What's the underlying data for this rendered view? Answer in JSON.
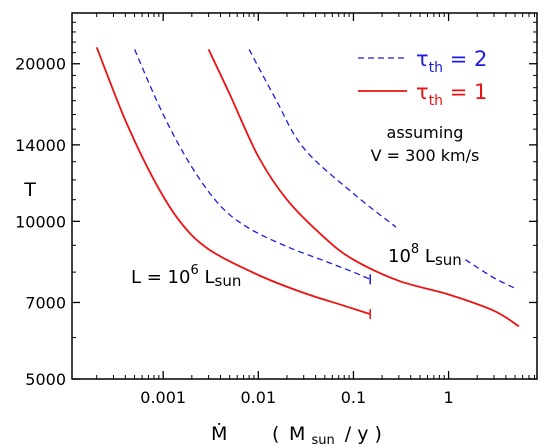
{
  "chart_data": {
    "type": "line",
    "x_scale": "log",
    "y_scale": "log",
    "xlim": [
      0.00011,
      8.5
    ],
    "ylim": [
      5000,
      25000
    ],
    "x_ticks": [
      {
        "value": 0.001,
        "label": "0.001"
      },
      {
        "value": 0.01,
        "label": "0.01"
      },
      {
        "value": 0.1,
        "label": "0.1"
      },
      {
        "value": 1,
        "label": "1"
      }
    ],
    "y_ticks": [
      {
        "value": 5000,
        "label": "5000"
      },
      {
        "value": 7000,
        "label": "7000"
      },
      {
        "value": 10000,
        "label": "10000"
      },
      {
        "value": 14000,
        "label": "14000"
      },
      {
        "value": 20000,
        "label": "20000"
      }
    ],
    "xlabel": {
      "mdot": "Ṁ",
      "open": "(",
      "m": "M",
      "sub": "sun",
      "rest": "/ y )"
    },
    "ylabel": "T",
    "legend": [
      {
        "symbol": "τ",
        "sub": "th",
        "rest": " = 2",
        "color": "#1c1ce0",
        "dash": true
      },
      {
        "symbol": "τ",
        "sub": "th",
        "rest": " = 1",
        "color": "#ee1111",
        "dash": false
      }
    ],
    "annotations": {
      "assuming_line1": "assuming",
      "assuming_line2": "V = 300 km/s",
      "label_L6": {
        "pre": "L = 10",
        "sup": "6",
        "mid": " L",
        "sub": "sun"
      },
      "label_L8": {
        "pre": "10",
        "sup": "8",
        "mid": " L",
        "sub": "sun"
      }
    },
    "series": [
      {
        "key": "tau1_L6",
        "color": "#ee1111",
        "dash": false,
        "end_tick": true,
        "points": [
          [
            0.0002,
            21500
          ],
          [
            0.0004,
            15600
          ],
          [
            0.0008,
            12000
          ],
          [
            0.0015,
            10000
          ],
          [
            0.003,
            8850
          ],
          [
            0.01,
            7900
          ],
          [
            0.03,
            7300
          ],
          [
            0.08,
            6900
          ],
          [
            0.15,
            6650
          ]
        ]
      },
      {
        "key": "tau2_L6",
        "color": "#1c1ce0",
        "dash": true,
        "end_tick": true,
        "points": [
          [
            0.0005,
            21300
          ],
          [
            0.001,
            16000
          ],
          [
            0.002,
            12700
          ],
          [
            0.004,
            10700
          ],
          [
            0.008,
            9700
          ],
          [
            0.02,
            8950
          ],
          [
            0.05,
            8400
          ],
          [
            0.1,
            8000
          ],
          [
            0.15,
            7750
          ]
        ]
      },
      {
        "key": "tau1_L8",
        "color": "#ee1111",
        "dash": false,
        "end_tick": false,
        "points": [
          [
            0.003,
            21300
          ],
          [
            0.005,
            17500
          ],
          [
            0.01,
            13300
          ],
          [
            0.02,
            11000
          ],
          [
            0.05,
            9300
          ],
          [
            0.1,
            8450
          ],
          [
            0.3,
            7700
          ],
          [
            1.0,
            7250
          ],
          [
            3.0,
            6750
          ],
          [
            5.5,
            6300
          ]
        ]
      },
      {
        "key": "tau2_L8",
        "color": "#1c1ce0",
        "dash": true,
        "end_tick": false,
        "points": [
          [
            0.008,
            21300
          ],
          [
            0.015,
            17200
          ],
          [
            0.03,
            13800
          ],
          [
            0.1,
            11300
          ],
          [
            0.28,
            9750
          ]
        ]
      },
      {
        "key": "tau2_L8_tail",
        "color": "#1c1ce0",
        "dash": true,
        "end_tick": false,
        "points": [
          [
            1.5,
            8450
          ],
          [
            3.0,
            7800
          ],
          [
            5.0,
            7450
          ]
        ]
      }
    ]
  }
}
